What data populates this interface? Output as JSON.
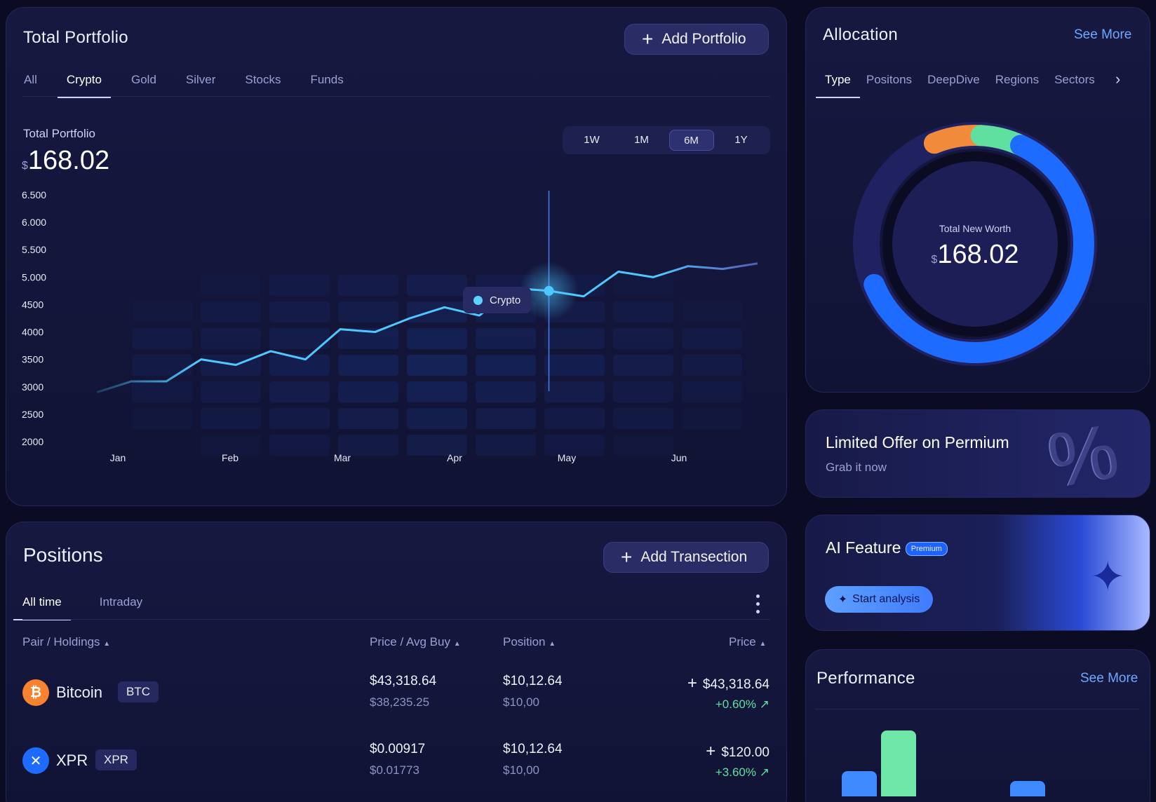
{
  "portfolio": {
    "title": "Total Portfolio",
    "add_button": "Add Portfolio",
    "tabs": [
      "All",
      "Crypto",
      "Gold",
      "Silver",
      "Stocks",
      "Funds"
    ],
    "active_tab": "Crypto",
    "value_label": "Total Portfolio",
    "currency": "$",
    "value": "168.02",
    "ranges": [
      "1W",
      "1M",
      "6M",
      "1Y"
    ],
    "selected_range": "6M",
    "tooltip_label": "Crypto"
  },
  "chart_data": {
    "type": "line",
    "series": [
      {
        "name": "Crypto",
        "color": "#4fc8ff",
        "x": [
          "Jan",
          "Jan",
          "Jan",
          "Feb",
          "Feb",
          "Feb",
          "Feb",
          "Mar",
          "Mar",
          "Mar",
          "Apr",
          "Apr",
          "Apr",
          "May",
          "May",
          "Jun",
          "Jun",
          "Jun",
          "Jun",
          "Jun"
        ],
        "values": [
          2900,
          3100,
          3100,
          3500,
          3400,
          3650,
          3500,
          4050,
          4000,
          4250,
          4450,
          4300,
          4800,
          4750,
          4650,
          5100,
          5000,
          5200,
          5150,
          5250
        ]
      }
    ],
    "xlabel": "",
    "ylabel": "",
    "x_ticks": [
      "Jan",
      "Feb",
      "Mar",
      "Apr",
      "May",
      "Jun"
    ],
    "y_ticks": [
      "6.500",
      "6.000",
      "5.500",
      "5.000",
      "4500",
      "4000",
      "3500",
      "3000",
      "2500",
      "2000"
    ],
    "ylim": [
      2000,
      6500
    ],
    "highlight_x": "May",
    "grid": false
  },
  "positions": {
    "title": "Positions",
    "add_button": "Add Transection",
    "tabs": [
      "All time",
      "Intraday"
    ],
    "active_tab": "All time",
    "columns": [
      "Pair / Holdings",
      "Price / Avg Buy",
      "Position",
      "Price"
    ],
    "rows": [
      {
        "name": "Bitcoin",
        "ticker": "BTC",
        "icon": "bitcoin-icon",
        "icon_color": "#f7822f",
        "price": "$43,318.64",
        "avg_buy": "$38,235.25",
        "position": "$10,12.64",
        "position_sub": "$10,00",
        "total": "$43,318.64",
        "change": "+0.60%"
      },
      {
        "name": "XPR",
        "ticker": "XPR",
        "icon": "xpr-icon",
        "icon_color": "#1e6bff",
        "price": "$0.00917",
        "avg_buy": "$0.01773",
        "position": "$10,12.64",
        "position_sub": "$10,00",
        "total": "$120.00",
        "change": "+3.60%"
      }
    ]
  },
  "allocation": {
    "title": "Allocation",
    "see_more": "See More",
    "tabs": [
      "Type",
      "Positons",
      "DeepDive",
      "Regions",
      "Sectors"
    ],
    "active_tab": "Type",
    "center_label": "Total New Worth",
    "currency": "$",
    "value": "168.02",
    "segments": [
      {
        "color": "#f28a3c",
        "fraction": 0.07
      },
      {
        "color": "#5fe0a0",
        "fraction": 0.06
      },
      {
        "color": "#1e6bff",
        "fraction": 0.62
      }
    ]
  },
  "offer": {
    "title": "Limited Offer on Permium",
    "subtitle": "Grab it now"
  },
  "ai": {
    "title": "AI Feature",
    "badge": "Premium",
    "button": "Start analysis"
  },
  "performance": {
    "title": "Performance",
    "see_more": "See More",
    "bars": [
      {
        "color": "#3d8bff",
        "value": 0.42
      },
      {
        "color": "#6ee7a8",
        "value": 1.0
      },
      {
        "color": "#3d8bff",
        "value": 0.28
      }
    ]
  }
}
